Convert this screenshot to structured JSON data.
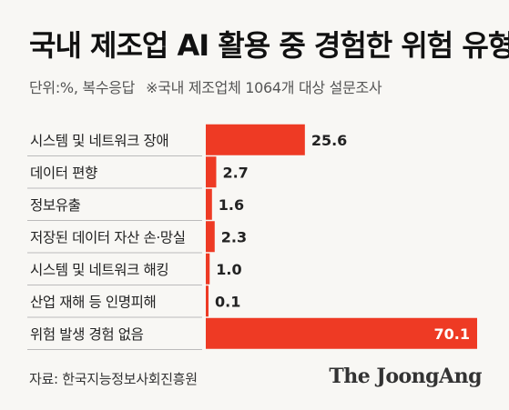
{
  "header": {
    "title": "국내 제조업 AI 활용 중 경험한 위험 유형",
    "unit": "단위:%, 복수응답",
    "note": "※국내 제조업체 1064개 대상 설문조사"
  },
  "footer": {
    "source": "자료: 한국지능정보사회진흥원",
    "brand": "The JoongAng"
  },
  "colors": {
    "bar": "#ee3a24",
    "label_text": "#222222",
    "value_text": "#222222",
    "value_text_inside": "#ffffff",
    "divider": "#bbbbbb"
  },
  "chart_data": {
    "type": "bar",
    "orientation": "horizontal",
    "categories": [
      "시스템 및 네트워크 장애",
      "데이터 편향",
      "정보유출",
      "저장된 데이터 자산 손·망실",
      "시스템 및 네트워크 해킹",
      "산업 재해 등 인명피해",
      "위험 발생 경험 없음"
    ],
    "values": [
      25.6,
      2.7,
      1.6,
      2.3,
      1.0,
      0.1,
      70.1
    ],
    "value_labels": [
      "25.6",
      "2.7",
      "1.6",
      "2.3",
      "1.0",
      "0.1",
      "70.1"
    ],
    "xlim": [
      0,
      70.1
    ],
    "grid": false,
    "legend": "none"
  }
}
